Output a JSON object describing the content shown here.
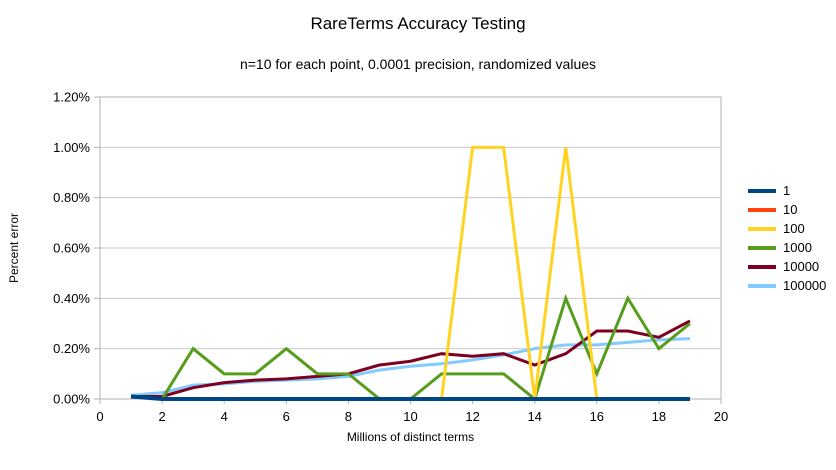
{
  "title": "RareTerms Accuracy Testing",
  "subtitle": "n=10 for each point, 0.0001 precision, randomized values",
  "chart_data": {
    "type": "line",
    "title": "RareTerms Accuracy Testing",
    "subtitle": "n=10 for each point, 0.0001 precision, randomized values",
    "xlabel": "Millions of distinct terms",
    "ylabel": "Percent error",
    "xlim": [
      0,
      20
    ],
    "ylim": [
      0,
      1.2
    ],
    "grid": "horizontal",
    "legend_position": "right",
    "x_ticks": [
      0,
      2,
      4,
      6,
      8,
      10,
      12,
      14,
      16,
      18,
      20
    ],
    "y_ticks": [
      {
        "value": 0.0,
        "label": "0.00%"
      },
      {
        "value": 0.2,
        "label": "0.20%"
      },
      {
        "value": 0.4,
        "label": "0.40%"
      },
      {
        "value": 0.6,
        "label": "0.60%"
      },
      {
        "value": 0.8,
        "label": "0.80%"
      },
      {
        "value": 1.0,
        "label": "1.00%"
      },
      {
        "value": 1.2,
        "label": "1.20%"
      }
    ],
    "x": [
      1,
      2,
      3,
      4,
      5,
      6,
      7,
      8,
      9,
      10,
      11,
      12,
      13,
      14,
      15,
      16,
      17,
      18,
      19
    ],
    "series": [
      {
        "name": "1",
        "color": "#004586",
        "values": [
          0.01,
          0,
          0,
          0,
          0,
          0,
          0,
          0,
          0,
          0,
          0,
          0,
          0,
          0,
          0,
          0,
          0,
          0,
          0
        ]
      },
      {
        "name": "10",
        "color": "#ff420e",
        "values": [
          0.01,
          0,
          0,
          0,
          0,
          0,
          0,
          0,
          0,
          0,
          0,
          0,
          0,
          0,
          0,
          0,
          0,
          0,
          0
        ]
      },
      {
        "name": "100",
        "color": "#ffd320",
        "values": [
          0.01,
          0,
          0,
          0,
          0,
          0,
          0,
          0,
          0,
          0,
          0,
          1.0,
          1.0,
          0,
          1.0,
          0,
          0,
          0,
          0
        ]
      },
      {
        "name": "1000",
        "color": "#579d1c",
        "values": [
          0.01,
          0,
          0.2,
          0.1,
          0.1,
          0.2,
          0.1,
          0.1,
          0,
          0,
          0.1,
          0.1,
          0.1,
          0,
          0.4,
          0.1,
          0.4,
          0.2,
          0.3
        ]
      },
      {
        "name": "10000",
        "color": "#7e0021",
        "values": [
          0.01,
          0.01,
          0.045,
          0.065,
          0.075,
          0.08,
          0.09,
          0.1,
          0.135,
          0.15,
          0.18,
          0.17,
          0.18,
          0.135,
          0.18,
          0.27,
          0.27,
          0.245,
          0.31
        ]
      },
      {
        "name": "100000",
        "color": "#83caff",
        "values": [
          0.015,
          0.025,
          0.055,
          0.06,
          0.07,
          0.075,
          0.08,
          0.09,
          0.115,
          0.13,
          0.14,
          0.155,
          0.175,
          0.2,
          0.215,
          0.215,
          0.225,
          0.235,
          0.24
        ]
      }
    ],
    "colors": {
      "gridline": "#c8c8c8",
      "frame": "#b3b3b3",
      "text": "#000000",
      "background": "#ffffff"
    }
  }
}
